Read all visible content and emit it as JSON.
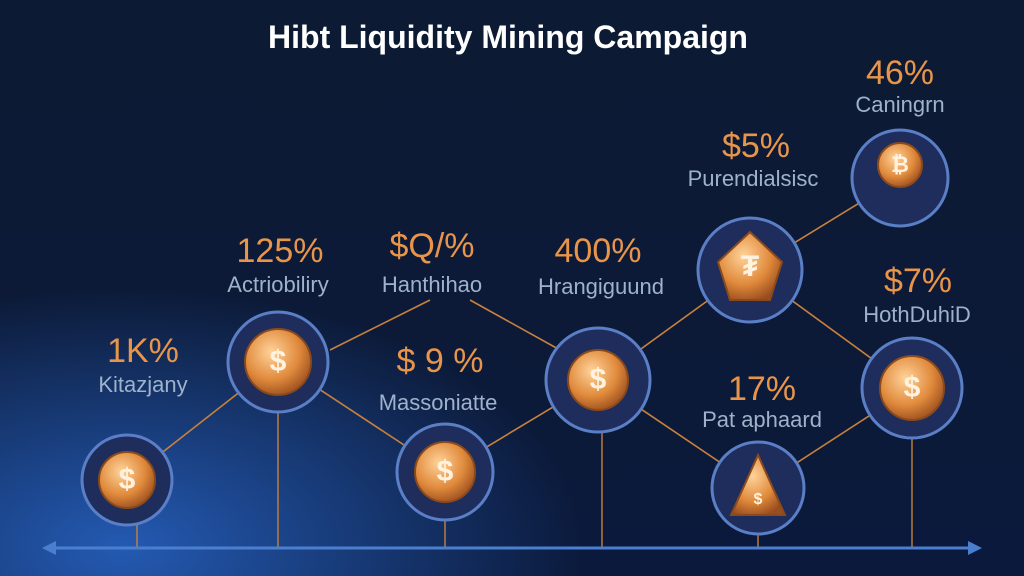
{
  "header": {
    "title": "Hibt Liquidity Mining Campaign"
  },
  "nodes": [
    {
      "value": "1K%",
      "label": "Kitazjany"
    },
    {
      "value": "125%",
      "label": "Actriobiliry"
    },
    {
      "value": "$ 9 %",
      "label": "Massoniatte"
    },
    {
      "value": "$Q/%",
      "label": "Hanthihao"
    },
    {
      "value": "400%",
      "label": "Hrangiguund"
    },
    {
      "value": "$5%",
      "label": "Purendialsisc"
    },
    {
      "value": "46%",
      "label": "Caningrn"
    },
    {
      "value": "17%",
      "label": "Pat aphaard"
    },
    {
      "value": "$7%",
      "label": "HothDuhiD"
    }
  ]
}
